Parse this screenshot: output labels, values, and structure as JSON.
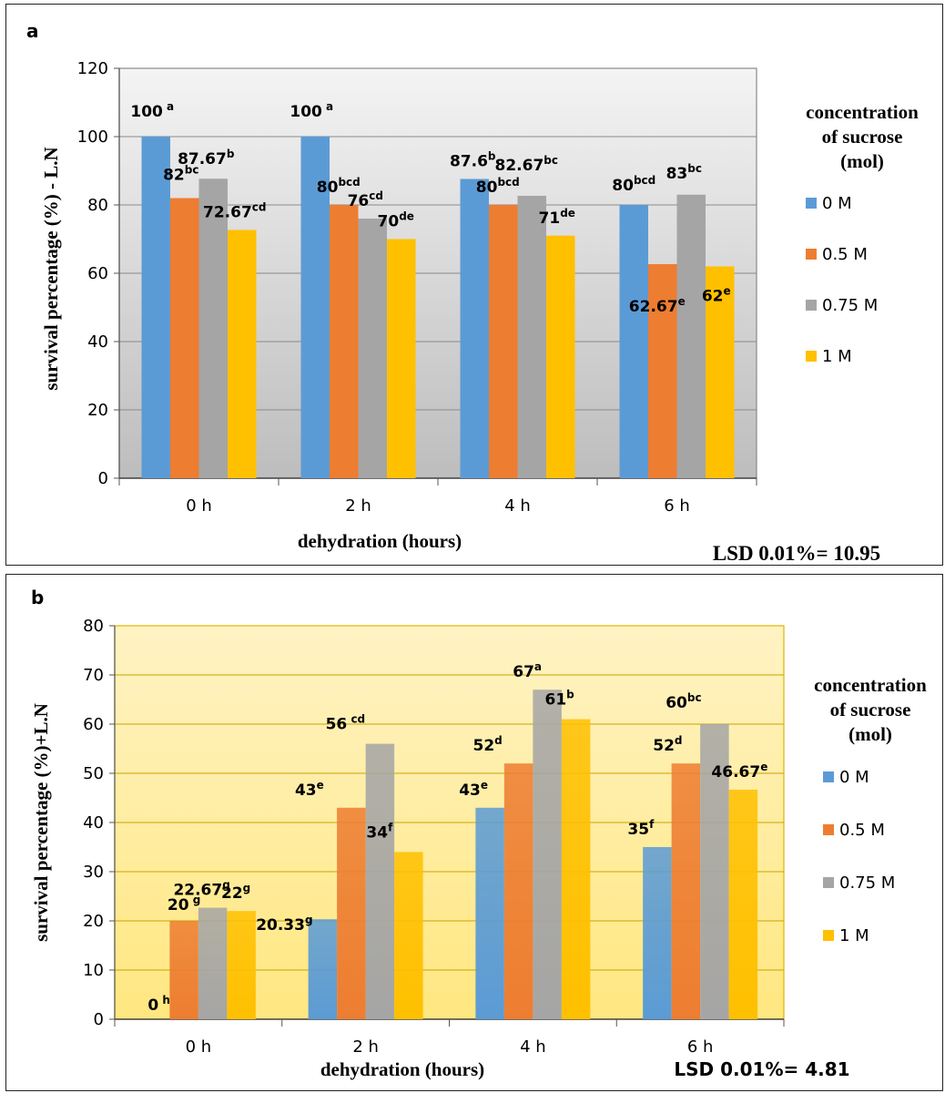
{
  "chart_data": [
    {
      "panel_letter": "a",
      "type": "bar",
      "categories": [
        "0 h",
        "2 h",
        "4 h",
        "6 h"
      ],
      "series": [
        {
          "name": "0 M",
          "color": "#5b9bd5",
          "values": [
            100,
            100,
            87.6,
            80
          ],
          "labels": [
            {
              "text": "100",
              "sup": " a"
            },
            {
              "text": "100",
              "sup": " a"
            },
            {
              "text": "87.6",
              "sup": "b"
            },
            {
              "text": "80",
              "sup": "bcd"
            }
          ]
        },
        {
          "name": "0.5 M",
          "color": "#ed7d31",
          "values": [
            82,
            80,
            80,
            62.67
          ],
          "labels": [
            {
              "text": "82",
              "sup": "bc"
            },
            {
              "text": "80",
              "sup": "bcd"
            },
            {
              "text": "80",
              "sup": "bcd"
            },
            {
              "text": "62.67",
              "sup": "e"
            }
          ]
        },
        {
          "name": "0.75 M",
          "color": "#a5a5a5",
          "values": [
            87.67,
            76,
            82.67,
            83
          ],
          "labels": [
            {
              "text": "87.67",
              "sup": "b"
            },
            {
              "text": "76",
              "sup": "cd"
            },
            {
              "text": "82.67",
              "sup": "bc"
            },
            {
              "text": "83",
              "sup": "bc"
            }
          ]
        },
        {
          "name": "1 M",
          "color": "#ffc000",
          "values": [
            72.67,
            70,
            71,
            62
          ],
          "labels": [
            {
              "text": "72.67",
              "sup": "cd"
            },
            {
              "text": "70",
              "sup": "de"
            },
            {
              "text": "71",
              "sup": "de"
            },
            {
              "text": "62",
              "sup": "e"
            }
          ]
        }
      ],
      "ylabel": "survival percentage (%) - L.N",
      "xlabel": "dehydration (hours)",
      "ylim": [
        0,
        120
      ],
      "yticks": [
        0,
        20,
        40,
        60,
        80,
        100,
        120
      ],
      "legend_title": [
        "concentration",
        "of sucrose",
        "(mol)"
      ],
      "legend_position": "right",
      "gridlines": true,
      "plot_background": "gray gradient",
      "annotation": "LSD 0.01%= 10.95"
    },
    {
      "panel_letter": "b",
      "type": "bar",
      "categories": [
        "0 h",
        "2 h",
        "4 h",
        "6 h"
      ],
      "series": [
        {
          "name": "0 M",
          "color": "#5b9bd5",
          "values": [
            0,
            20.33,
            43,
            35
          ],
          "labels": [
            {
              "text": "0",
              "sup": " h"
            },
            {
              "text": "20.33",
              "sup": "g"
            },
            {
              "text": "43",
              "sup": "e"
            },
            {
              "text": "35",
              "sup": "f"
            }
          ]
        },
        {
          "name": "0.5 M",
          "color": "#ed7d31",
          "values": [
            20,
            43,
            52,
            52
          ],
          "labels": [
            {
              "text": "20",
              "sup": " g"
            },
            {
              "text": "43",
              "sup": "e"
            },
            {
              "text": "52",
              "sup": "d"
            },
            {
              "text": "52",
              "sup": "d"
            }
          ]
        },
        {
          "name": "0.75 M",
          "color": "#a5a5a5",
          "values": [
            22.67,
            56,
            67,
            60
          ],
          "labels": [
            {
              "text": "22.67",
              "sup": "g"
            },
            {
              "text": "56",
              "sup": " cd"
            },
            {
              "text": "67",
              "sup": "a"
            },
            {
              "text": "60",
              "sup": "bc"
            }
          ]
        },
        {
          "name": "1 M",
          "color": "#ffc000",
          "values": [
            22,
            34,
            61,
            46.67
          ],
          "labels": [
            {
              "text": "22",
              "sup": "g"
            },
            {
              "text": "34",
              "sup": "f"
            },
            {
              "text": "61",
              "sup": "b"
            },
            {
              "text": "46.67",
              "sup": "e"
            }
          ]
        }
      ],
      "ylabel": "survival percentage (%)+L.N",
      "xlabel": "dehydration (hours)",
      "ylim": [
        0,
        80
      ],
      "yticks": [
        0,
        10,
        20,
        30,
        40,
        50,
        60,
        70,
        80
      ],
      "legend_title": [
        "concentration",
        "of sucrose",
        "(mol)"
      ],
      "legend_position": "right",
      "gridlines": true,
      "plot_background": "yellow gradient",
      "annotation": "LSD 0.01%= 4.81"
    }
  ]
}
